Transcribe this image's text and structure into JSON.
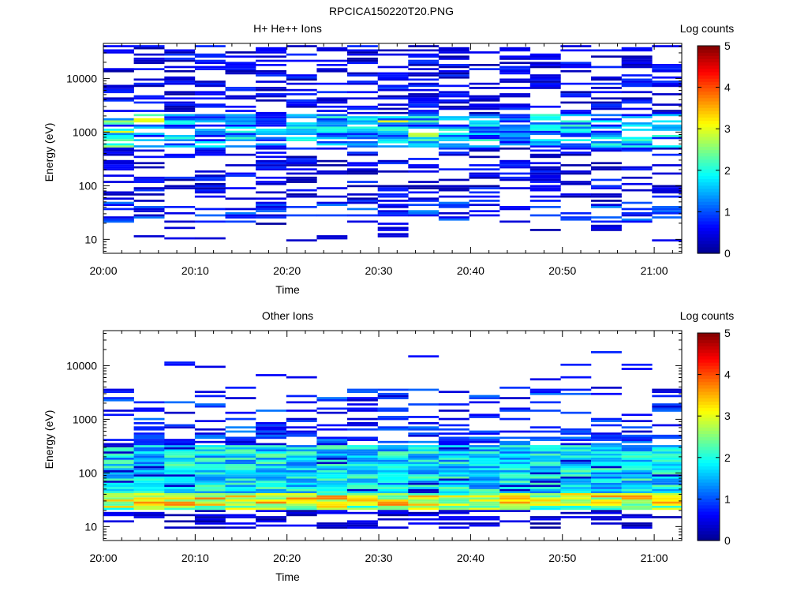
{
  "figure_title": "RPCICA150220T20.PNG",
  "colors": {
    "colormap": [
      "#00008f",
      "#0000ff",
      "#0080ff",
      "#00ffff",
      "#80ff80",
      "#ffff00",
      "#ff8000",
      "#ff0000",
      "#800000"
    ],
    "background": "#ffffff"
  },
  "chart_data": [
    {
      "type": "heatmap",
      "title": "H+ He++ Ions",
      "xlabel": "Time",
      "ylabel": "Energy (eV)",
      "y_scale": "log",
      "ylim": [
        5.5,
        45000
      ],
      "xlim": [
        "20:00",
        "21:03"
      ],
      "x_ticks": [
        "20:00",
        "20:10",
        "20:20",
        "20:30",
        "20:40",
        "20:50",
        "21:00"
      ],
      "y_ticks": [
        "10",
        "100",
        "1000",
        "10000"
      ],
      "colorbar": {
        "label": "Log counts",
        "range": [
          0,
          5
        ],
        "ticks": [
          "0",
          "1",
          "2",
          "3",
          "4",
          "5"
        ]
      },
      "time_bins": [
        "20:00",
        "20:03",
        "20:06",
        "20:10",
        "20:13",
        "20:16",
        "20:19",
        "20:22",
        "20:26",
        "20:29",
        "20:32",
        "20:35",
        "20:38",
        "20:42",
        "20:45",
        "20:48",
        "20:51",
        "20:54",
        "20:58"
      ],
      "description_values": [
        {
          "energy_range_eV": [
            500,
            2200
          ],
          "log_counts_max": 3.0
        },
        {
          "energy_range_eV": [
            1300,
            2000
          ],
          "log_counts_max": 2.3
        },
        {
          "energy_range_eV": [
            20,
            60
          ],
          "log_counts_max": 1.2
        },
        {
          "energy_range_eV": [
            10,
            40000
          ],
          "log_counts_typical": 0.5
        }
      ]
    },
    {
      "type": "heatmap",
      "title": "Other Ions",
      "xlabel": "Time",
      "ylabel": "Energy (eV)",
      "y_scale": "log",
      "ylim": [
        5.5,
        45000
      ],
      "xlim": [
        "20:00",
        "21:03"
      ],
      "x_ticks": [
        "20:00",
        "20:10",
        "20:20",
        "20:30",
        "20:40",
        "20:50",
        "21:00"
      ],
      "y_ticks": [
        "10",
        "100",
        "1000",
        "10000"
      ],
      "colorbar": {
        "label": "Log counts",
        "range": [
          0,
          5
        ],
        "ticks": [
          "0",
          "1",
          "2",
          "3",
          "4",
          "5"
        ]
      },
      "time_bins": [
        "20:00",
        "20:03",
        "20:06",
        "20:10",
        "20:13",
        "20:16",
        "20:19",
        "20:22",
        "20:26",
        "20:29",
        "20:32",
        "20:35",
        "20:38",
        "20:42",
        "20:45",
        "20:48",
        "20:51",
        "20:54",
        "20:58"
      ],
      "description_values": [
        {
          "energy_range_eV": [
            20,
            45
          ],
          "log_counts_max": 3.6
        },
        {
          "energy_range_eV": [
            45,
            300
          ],
          "log_counts_typical": 2.2
        },
        {
          "energy_range_eV": [
            300,
            3500
          ],
          "log_counts_typical": 0.6
        },
        {
          "energy_range_eV": [
            8,
            15
          ],
          "log_counts_typical": 0.1
        }
      ]
    }
  ]
}
